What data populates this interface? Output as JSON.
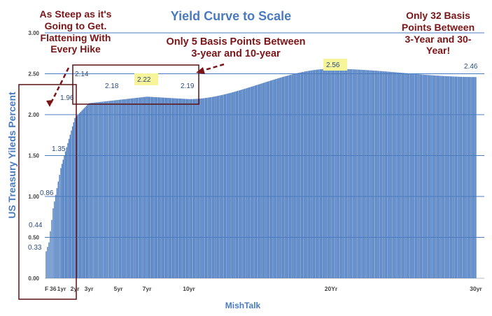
{
  "chart_data": {
    "type": "bar",
    "title": "Yield Curve to Scale",
    "xlabel": "MishTalk",
    "ylabel": "US Treasury Yileds Percent",
    "ylim": [
      0,
      3
    ],
    "yticks": [
      "0.00",
      "0.50",
      "1.00",
      "1.50",
      "2.00",
      "2.50",
      "3.00"
    ],
    "grid": true,
    "bar_color": "#4a7bc0",
    "x_tick_labels": [
      {
        "label": "F",
        "maturity": 0.08
      },
      {
        "label": "36",
        "maturity": 0.5
      },
      {
        "label": "1yr",
        "maturity": 1
      },
      {
        "label": "2yr",
        "maturity": 2
      },
      {
        "label": "3yr",
        "maturity": 3
      },
      {
        "label": "5yr",
        "maturity": 5
      },
      {
        "label": "7yr",
        "maturity": 7
      },
      {
        "label": "10yr",
        "maturity": 10
      },
      {
        "label": "20Yr",
        "maturity": 20
      },
      {
        "label": "30yr",
        "maturity": 30
      }
    ],
    "series": [
      {
        "points": [
          {
            "maturity": 0.08,
            "yield": 0.33,
            "label": "0.33"
          },
          {
            "maturity": 0.25,
            "yield": 0.44,
            "label": "0.44"
          },
          {
            "maturity": 0.5,
            "yield": 0.86,
            "label": "0.86"
          },
          {
            "maturity": 1,
            "yield": 1.35,
            "label": "1.35"
          },
          {
            "maturity": 2,
            "yield": 1.96,
            "label": "1.96"
          },
          {
            "maturity": 3,
            "yield": 2.14,
            "label": "2.14"
          },
          {
            "maturity": 5,
            "yield": 2.18,
            "label": "2.18"
          },
          {
            "maturity": 7,
            "yield": 2.22,
            "label": "2.22",
            "highlight": true
          },
          {
            "maturity": 10,
            "yield": 2.19,
            "label": "2.19"
          },
          {
            "maturity": 20,
            "yield": 2.56,
            "label": "2.56",
            "highlight": true
          },
          {
            "maturity": 30,
            "yield": 2.46,
            "label": "2.46"
          }
        ]
      }
    ],
    "annotations": [
      {
        "id": "steep",
        "text": [
          "As Steep as it's",
          "Going to Get.",
          "Flattening With",
          "Every Hike"
        ]
      },
      {
        "id": "five-bp",
        "text": [
          "Only 5 Basis Points Between",
          "3-year and 10-year"
        ]
      },
      {
        "id": "thirty-two-bp",
        "text": [
          "Only 32 Basis",
          "Points Between",
          "3-Year and 30-",
          "Year!"
        ]
      }
    ],
    "colors": {
      "title": "#4a7bc0",
      "axis_label": "#4a7bc0",
      "annotation": "#7b1416",
      "highlight": "#f7f49a",
      "grid": "#4a7bc0"
    }
  }
}
